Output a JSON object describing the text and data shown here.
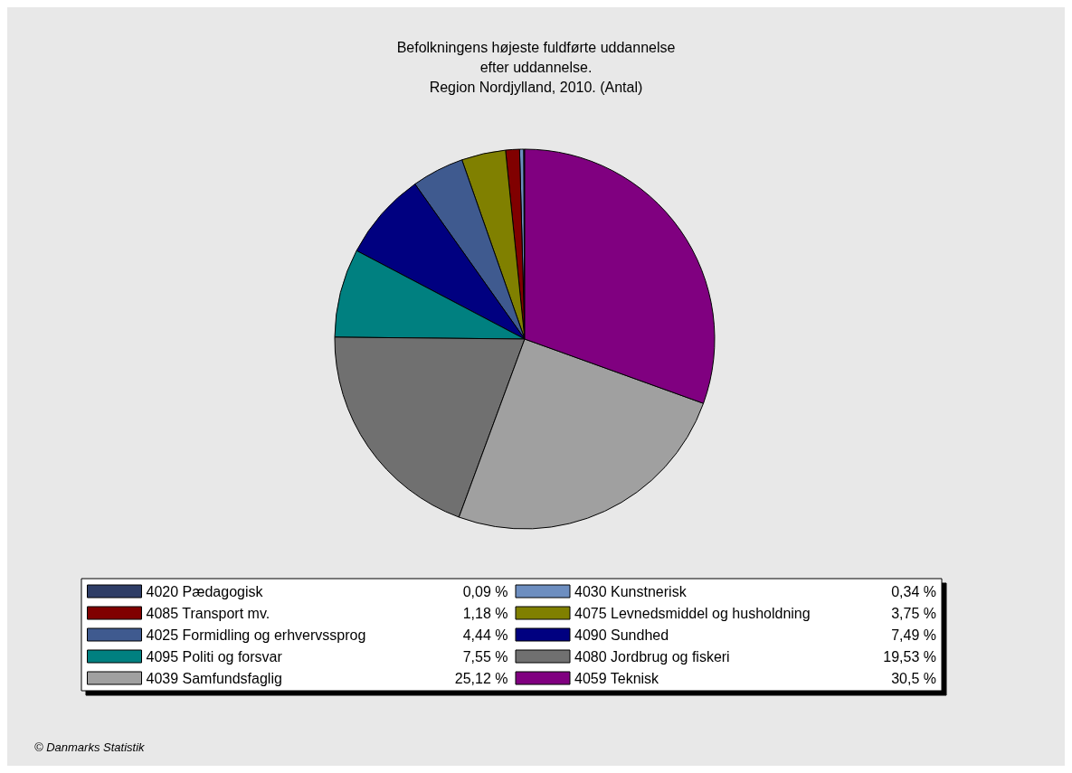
{
  "chart_data": {
    "type": "pie",
    "title": "Befolkningens højeste fuldførte uddannelse\nefter uddannelse.\nRegion Nordjylland, 2010. (Antal)",
    "categories": [
      "4020 Pædagogisk",
      "4030 Kunstnerisk",
      "4085 Transport mv.",
      "4075 Levnedsmiddel og husholdning",
      "4025 Formidling og erhvervssprog",
      "4090 Sundhed",
      "4095 Politi og forsvar",
      "4080 Jordbrug og fiskeri",
      "4039 Samfundsfaglig",
      "4059 Teknisk"
    ],
    "values": [
      0.09,
      0.34,
      1.18,
      3.75,
      4.44,
      7.49,
      7.55,
      19.53,
      25.12,
      30.5
    ],
    "value_labels": [
      "0,09 %",
      "0,34 %",
      "1,18 %",
      "3,75 %",
      "4,44 %",
      "7,49 %",
      "7,55 %",
      "19,53 %",
      "25,12 %",
      "30,5 %"
    ],
    "colors": [
      "#2e3d66",
      "#6d8ec0",
      "#800000",
      "#808000",
      "#3f5a8f",
      "#000080",
      "#008080",
      "#707070",
      "#a0a0a0",
      "#800080"
    ],
    "legend": "bottom",
    "annotations": [
      "© Danmarks Statistik"
    ]
  }
}
